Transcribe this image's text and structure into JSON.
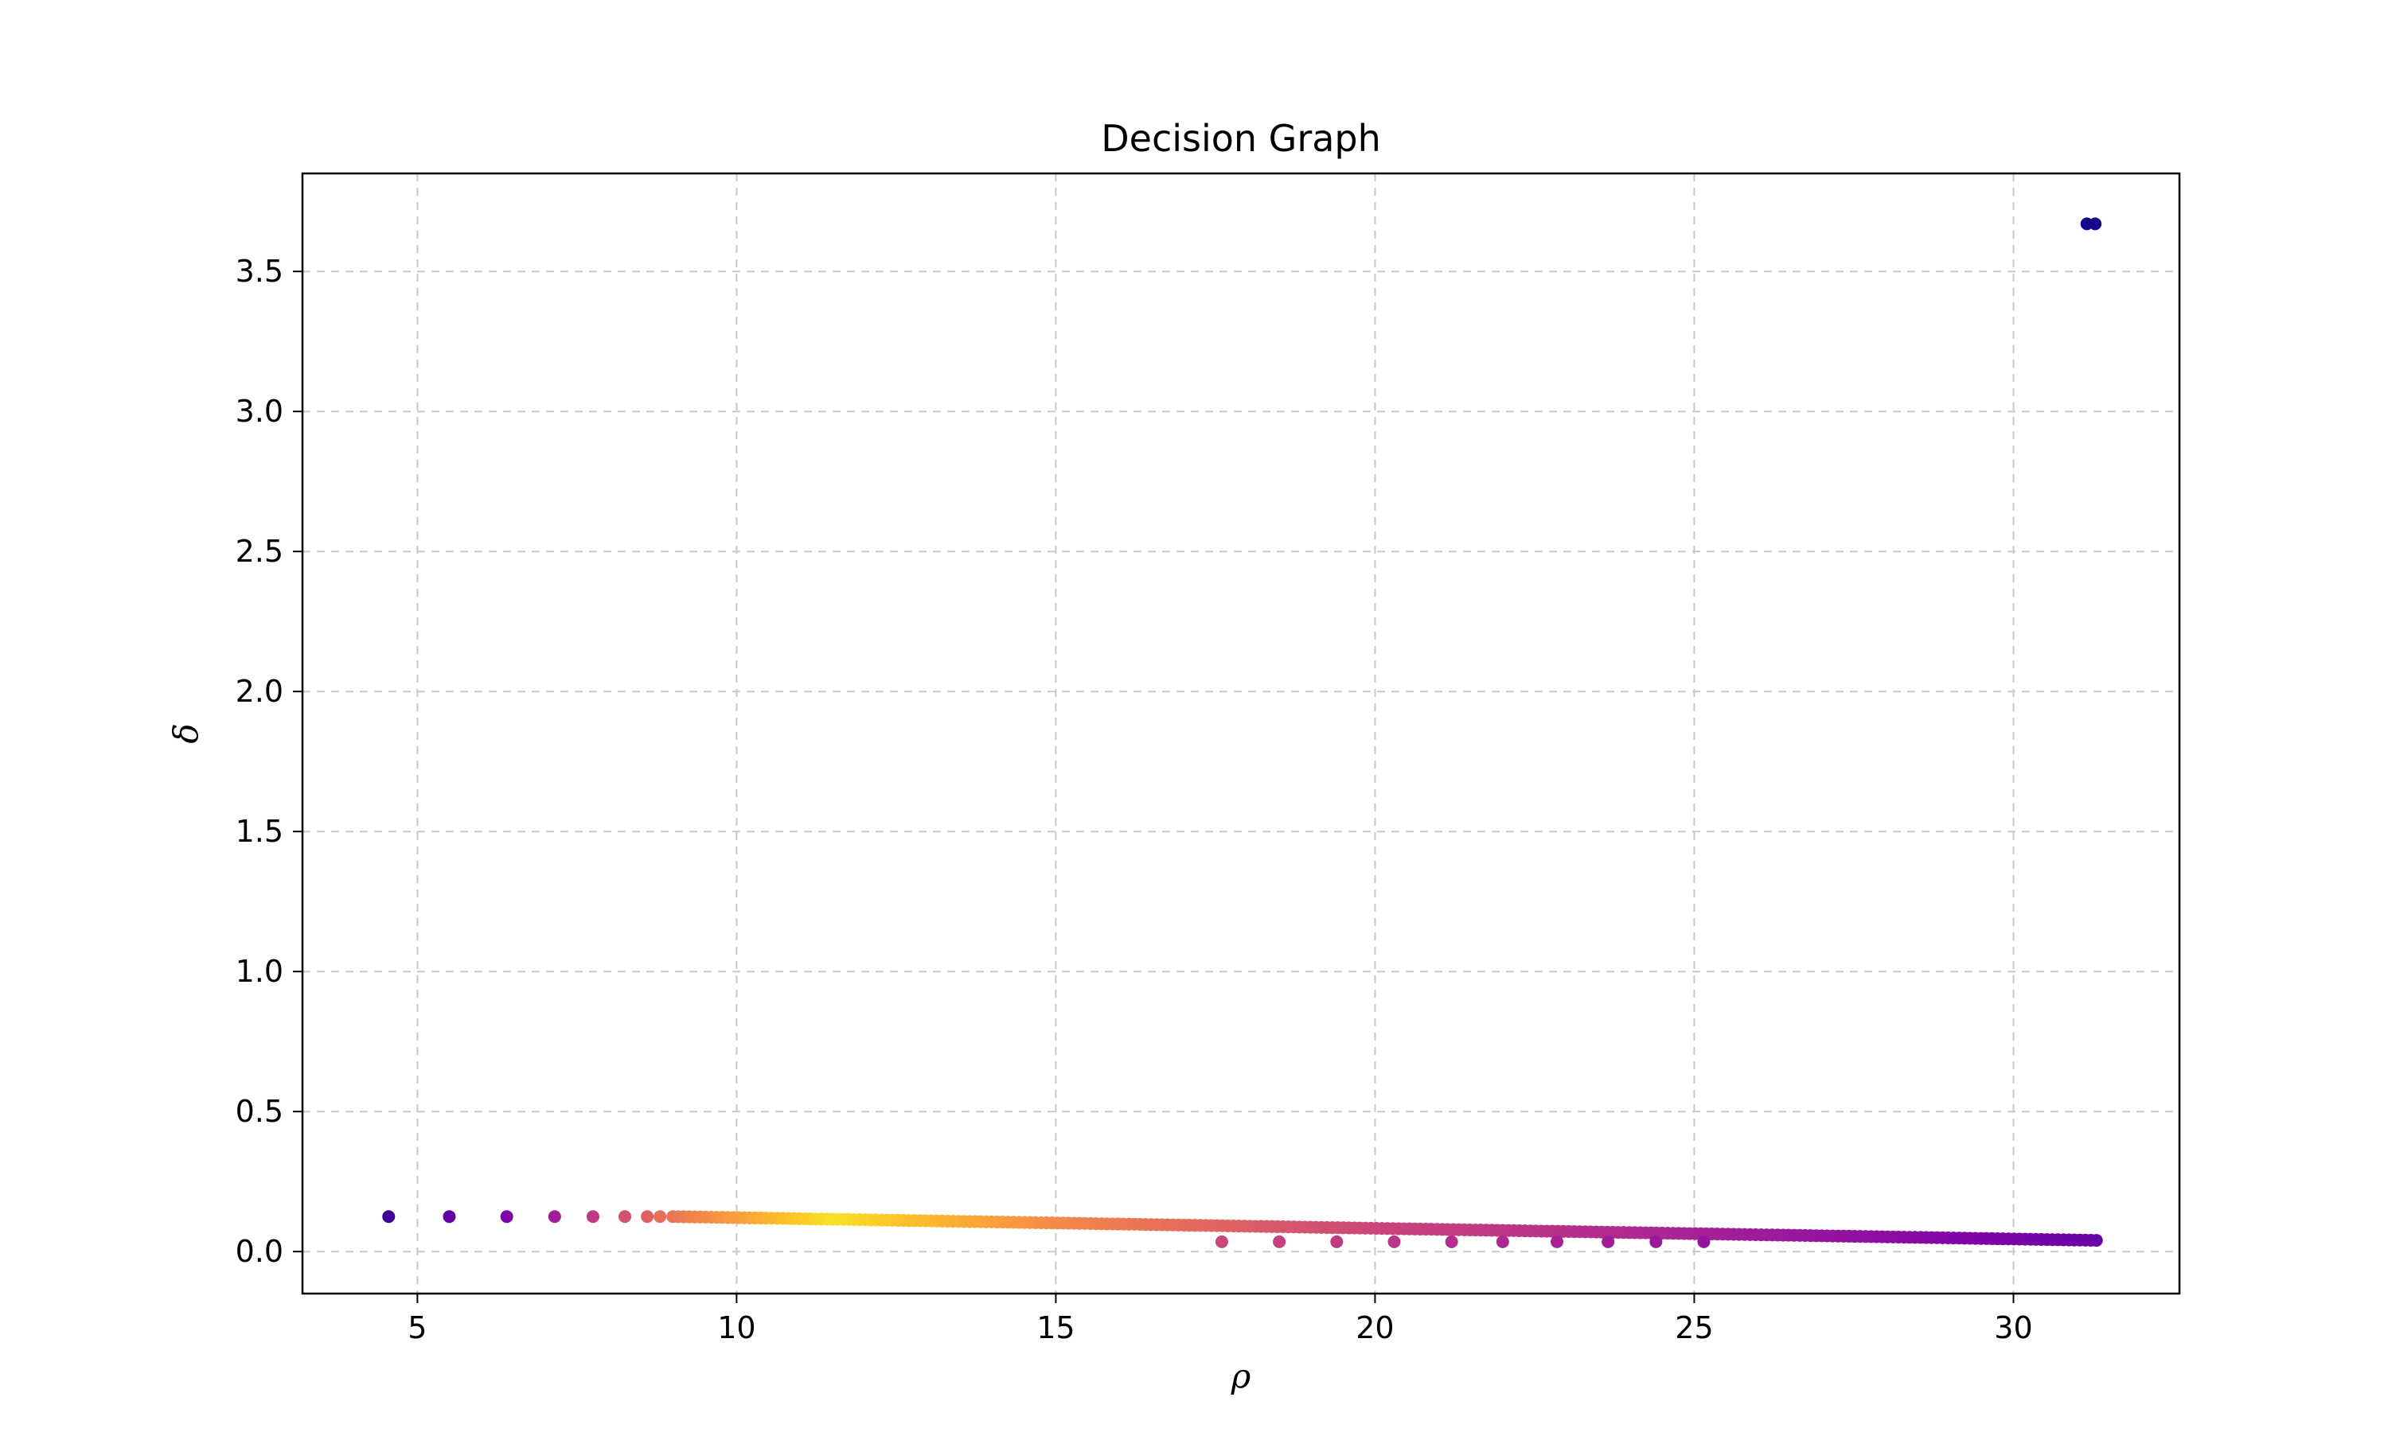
{
  "chart_data": {
    "type": "scatter",
    "title": "Decision Graph",
    "xlabel": "ρ",
    "ylabel": "δ",
    "xlim": [
      3.2,
      32.6
    ],
    "ylim": [
      -0.15,
      3.85
    ],
    "xticks": [
      5,
      10,
      15,
      20,
      25,
      30
    ],
    "xtick_labels": [
      "5",
      "10",
      "15",
      "20",
      "25",
      "30"
    ],
    "yticks": [
      0.0,
      0.5,
      1.0,
      1.5,
      2.0,
      2.5,
      3.0,
      3.5
    ],
    "ytick_labels": [
      "0.0",
      "0.5",
      "1.0",
      "1.5",
      "2.0",
      "2.5",
      "3.0",
      "3.5"
    ],
    "grid": true,
    "colormap": "plasma",
    "series": [
      {
        "name": "outlier-sparse-points",
        "points": [
          {
            "x": 4.55,
            "y": 0.125,
            "c": 0.1
          },
          {
            "x": 5.5,
            "y": 0.125,
            "c": 0.18
          },
          {
            "x": 6.4,
            "y": 0.125,
            "c": 0.26
          },
          {
            "x": 7.15,
            "y": 0.125,
            "c": 0.36
          },
          {
            "x": 7.75,
            "y": 0.125,
            "c": 0.46
          },
          {
            "x": 8.25,
            "y": 0.125,
            "c": 0.54
          },
          {
            "x": 8.6,
            "y": 0.125,
            "c": 0.6
          },
          {
            "x": 8.8,
            "y": 0.125,
            "c": 0.64
          }
        ]
      },
      {
        "name": "dense-band",
        "from": {
          "x": 9.0,
          "y": 0.125
        },
        "to": {
          "x": 31.3,
          "y": 0.04
        },
        "count": 260,
        "color_profile": [
          [
            9.0,
            0.66
          ],
          [
            11.5,
            0.95
          ],
          [
            15.0,
            0.72
          ],
          [
            20.0,
            0.5
          ],
          [
            25.0,
            0.38
          ],
          [
            31.3,
            0.2
          ]
        ]
      },
      {
        "name": "low-delta-points",
        "points": [
          {
            "x": 17.6,
            "y": 0.035,
            "c": 0.5
          },
          {
            "x": 18.5,
            "y": 0.035,
            "c": 0.48
          },
          {
            "x": 19.4,
            "y": 0.035,
            "c": 0.46
          },
          {
            "x": 20.3,
            "y": 0.035,
            "c": 0.44
          },
          {
            "x": 21.2,
            "y": 0.035,
            "c": 0.42
          },
          {
            "x": 22.0,
            "y": 0.035,
            "c": 0.4
          },
          {
            "x": 22.85,
            "y": 0.035,
            "c": 0.38
          },
          {
            "x": 23.65,
            "y": 0.035,
            "c": 0.36
          },
          {
            "x": 24.4,
            "y": 0.035,
            "c": 0.34
          },
          {
            "x": 25.15,
            "y": 0.035,
            "c": 0.32
          }
        ]
      },
      {
        "name": "cluster-centers",
        "points": [
          {
            "x": 31.15,
            "y": 3.67,
            "c": 0.02
          },
          {
            "x": 31.28,
            "y": 3.67,
            "c": 0.02
          }
        ]
      }
    ]
  }
}
